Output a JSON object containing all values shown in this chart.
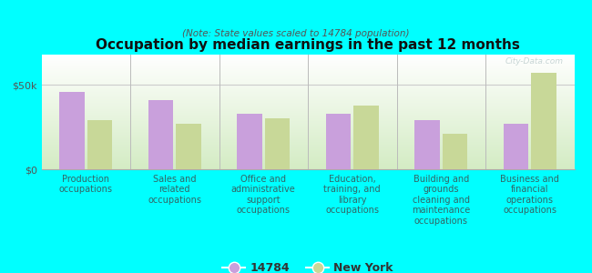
{
  "title": "Occupation by median earnings in the past 12 months",
  "subtitle": "(Note: State values scaled to 14784 population)",
  "background_color": "#00FFFF",
  "categories": [
    "Production\noccupations",
    "Sales and\nrelated\noccupations",
    "Office and\nadministrative\nsupport\noccupations",
    "Education,\ntraining, and\nlibrary\noccupations",
    "Building and\ngrounds\ncleaning and\nmaintenance\noccupations",
    "Business and\nfinancial\noperations\noccupations"
  ],
  "values_14784": [
    46000,
    41000,
    33000,
    33000,
    29000,
    27000
  ],
  "values_ny": [
    29000,
    27000,
    30000,
    38000,
    21000,
    57000
  ],
  "color_14784": "#c9a0dc",
  "color_ny": "#c8d898",
  "ylabel_ticks": [
    "$0",
    "$50k"
  ],
  "ytick_vals": [
    0,
    50000
  ],
  "ylim": [
    0,
    68000
  ],
  "legend_labels": [
    "14784",
    "New York"
  ],
  "watermark": "City-Data.com",
  "xticklabel_color": "#336666",
  "ytick_color": "#555555",
  "plot_bg_color_top": "#f0faf0",
  "plot_bg_color_bottom": "#d8edd8",
  "bar_width": 0.28
}
